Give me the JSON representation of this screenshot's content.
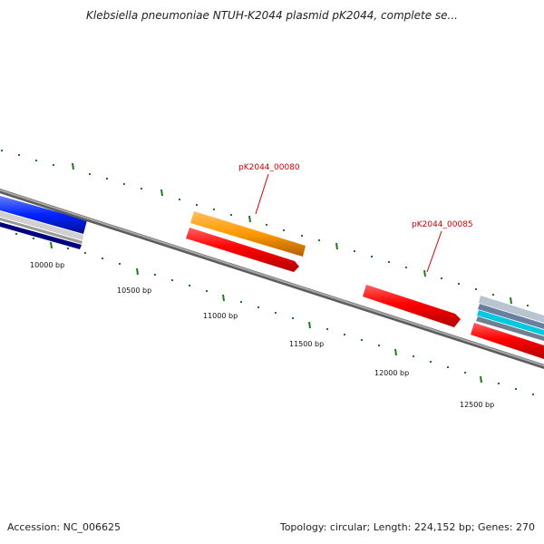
{
  "title": "Klebsiella pneumoniae NTUH-K2044 plasmid pK2044, complete se...",
  "accession": "Accession: NC_006625",
  "summary": "Topology: circular; Length: 224,152 bp; Genes: 270",
  "colors": {
    "backbone": "#8a8a8a",
    "tick": "#1f7a1f",
    "cds": "#ff0000",
    "gene_orange": "#ff9900",
    "blue": "#0033ff",
    "navy": "#000080",
    "grey_track": "#c0c0c0",
    "cyan_track": "#00ccdd",
    "label_red": "#cc0000"
  },
  "bp_labels": [
    "10000 bp",
    "10500 bp",
    "11000 bp",
    "11500 bp",
    "12000 bp",
    "12500 bp"
  ],
  "gene_labels": [
    {
      "id": "pk2044-00080",
      "text": "pK2044_00080"
    },
    {
      "id": "pk2044-00085",
      "text": "pK2044_00085"
    }
  ]
}
